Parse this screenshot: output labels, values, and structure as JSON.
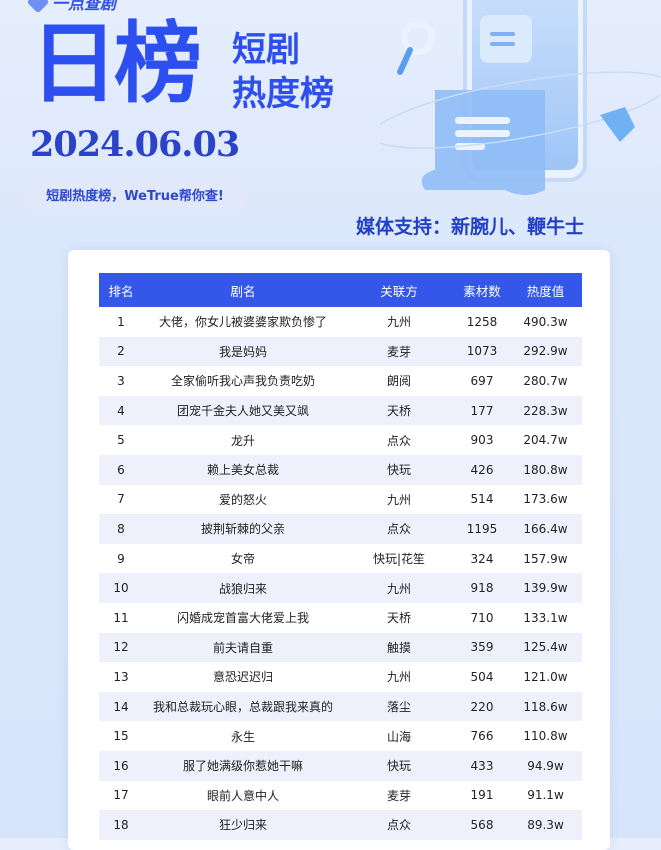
{
  "header": {
    "logo_text": "一点查剧",
    "title_big": "日榜",
    "title_sub_1": "短剧",
    "title_sub_2": "热度榜",
    "date": "2024.06.03",
    "slogan": "短剧热度榜，WeTrue帮你查!",
    "media_support": "媒体支持：新腕儿、鞭牛士"
  },
  "colors": {
    "accent": "#2d4ff0",
    "table_header": "#3457ea",
    "row_alt": "#eef1fc"
  },
  "table": {
    "columns": [
      "排名",
      "剧名",
      "关联方",
      "素材数",
      "热度值"
    ],
    "rows": [
      [
        "1",
        "大佬，你女儿被婆婆家欺负惨了",
        "九州",
        "1258",
        "490.3w"
      ],
      [
        "2",
        "我是妈妈",
        "麦芽",
        "1073",
        "292.9w"
      ],
      [
        "3",
        "全家偷听我心声我负责吃奶",
        "朗阅",
        "697",
        "280.7w"
      ],
      [
        "4",
        "团宠千金夫人她又美又飒",
        "天桥",
        "177",
        "228.3w"
      ],
      [
        "5",
        "龙升",
        "点众",
        "903",
        "204.7w"
      ],
      [
        "6",
        "赖上美女总裁",
        "快玩",
        "426",
        "180.8w"
      ],
      [
        "7",
        "爱的怒火",
        "九州",
        "514",
        "173.6w"
      ],
      [
        "8",
        "披荆斩棘的父亲",
        "点众",
        "1195",
        "166.4w"
      ],
      [
        "9",
        "女帝",
        "快玩|花笙",
        "324",
        "157.9w"
      ],
      [
        "10",
        "战狼归来",
        "九州",
        "918",
        "139.9w"
      ],
      [
        "11",
        "闪婚成宠首富大佬爱上我",
        "天桥",
        "710",
        "133.1w"
      ],
      [
        "12",
        "前夫请自重",
        "触摸",
        "359",
        "125.4w"
      ],
      [
        "13",
        "意恐迟迟归",
        "九州",
        "504",
        "121.0w"
      ],
      [
        "14",
        "我和总裁玩心眼，总裁跟我来真的",
        "落尘",
        "220",
        "118.6w"
      ],
      [
        "15",
        "永生",
        "山海",
        "766",
        "110.8w"
      ],
      [
        "16",
        "服了她满级你惹她干嘛",
        "快玩",
        "433",
        "94.9w"
      ],
      [
        "17",
        "眼前人意中人",
        "麦芽",
        "191",
        "91.1w"
      ],
      [
        "18",
        "狂少归来",
        "点众",
        "568",
        "89.3w"
      ]
    ]
  }
}
